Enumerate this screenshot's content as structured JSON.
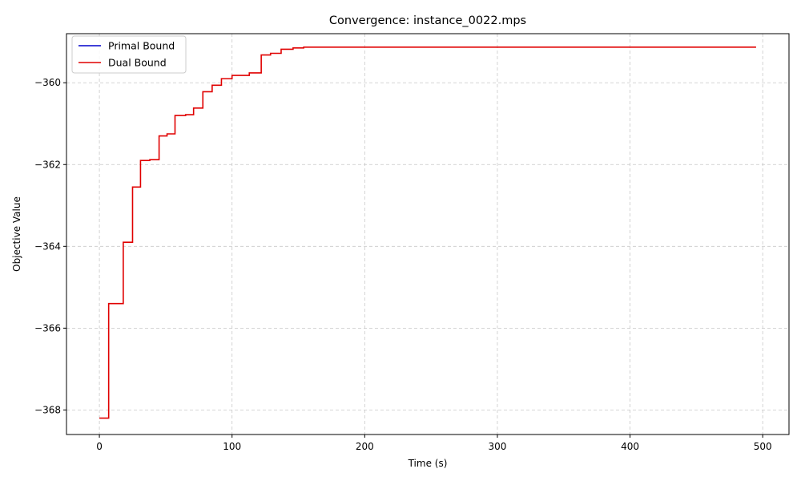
{
  "chart_data": {
    "type": "line",
    "title": "Convergence: instance_0022.mps",
    "xlabel": "Time (s)",
    "ylabel": "Objective Value",
    "xlim": [
      -24.8,
      519.8
    ],
    "ylim": [
      -368.6,
      -358.8
    ],
    "xticks": [
      0,
      100,
      200,
      300,
      400,
      500
    ],
    "yticks": [
      -368,
      -366,
      -364,
      -362,
      -360
    ],
    "xtick_labels": [
      "0",
      "100",
      "200",
      "300",
      "400",
      "500"
    ],
    "ytick_labels": [
      "−368",
      "−366",
      "−364",
      "−362",
      "−360"
    ],
    "grid": true,
    "legend_position": "top-left",
    "series": [
      {
        "name": "Primal Bound",
        "color": "#0000cc",
        "x": [],
        "y": []
      },
      {
        "name": "Dual Bound",
        "color": "#e00000",
        "step": "post",
        "x": [
          0,
          7,
          18,
          25,
          31,
          38,
          45,
          51,
          57,
          65,
          71,
          78,
          85,
          92,
          100,
          113,
          122,
          129,
          137,
          146,
          154,
          495
        ],
        "y": [
          -368.2,
          -365.4,
          -363.9,
          -362.55,
          -361.9,
          -361.88,
          -361.3,
          -361.25,
          -360.8,
          -360.78,
          -360.62,
          -360.22,
          -360.06,
          -359.9,
          -359.82,
          -359.76,
          -359.32,
          -359.28,
          -359.18,
          -359.15,
          -359.13,
          -359.13
        ]
      }
    ]
  }
}
